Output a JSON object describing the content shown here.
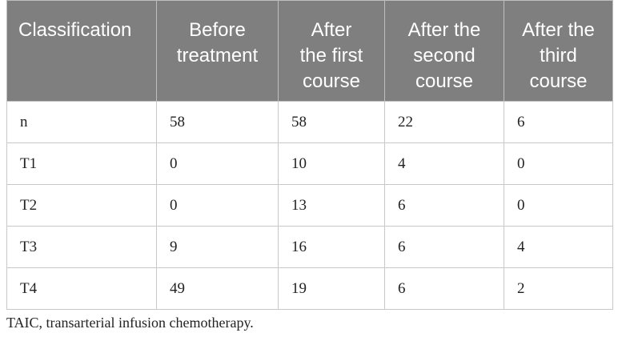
{
  "table": {
    "header": [
      [
        "Classification"
      ],
      [
        "Before",
        "treatment"
      ],
      [
        "After",
        "the first",
        "course"
      ],
      [
        "After the",
        "second",
        "course"
      ],
      [
        "After the",
        "third",
        "course"
      ]
    ],
    "rows": [
      [
        "n",
        "58",
        "58",
        "22",
        "6"
      ],
      [
        "T1",
        "0",
        "10",
        "4",
        "0"
      ],
      [
        "T2",
        "0",
        "13",
        "6",
        "0"
      ],
      [
        "T3",
        "9",
        "16",
        "6",
        "4"
      ],
      [
        "T4",
        "49",
        "19",
        "6",
        "2"
      ]
    ]
  },
  "footnote": "TAIC, transarterial infusion chemotherapy."
}
